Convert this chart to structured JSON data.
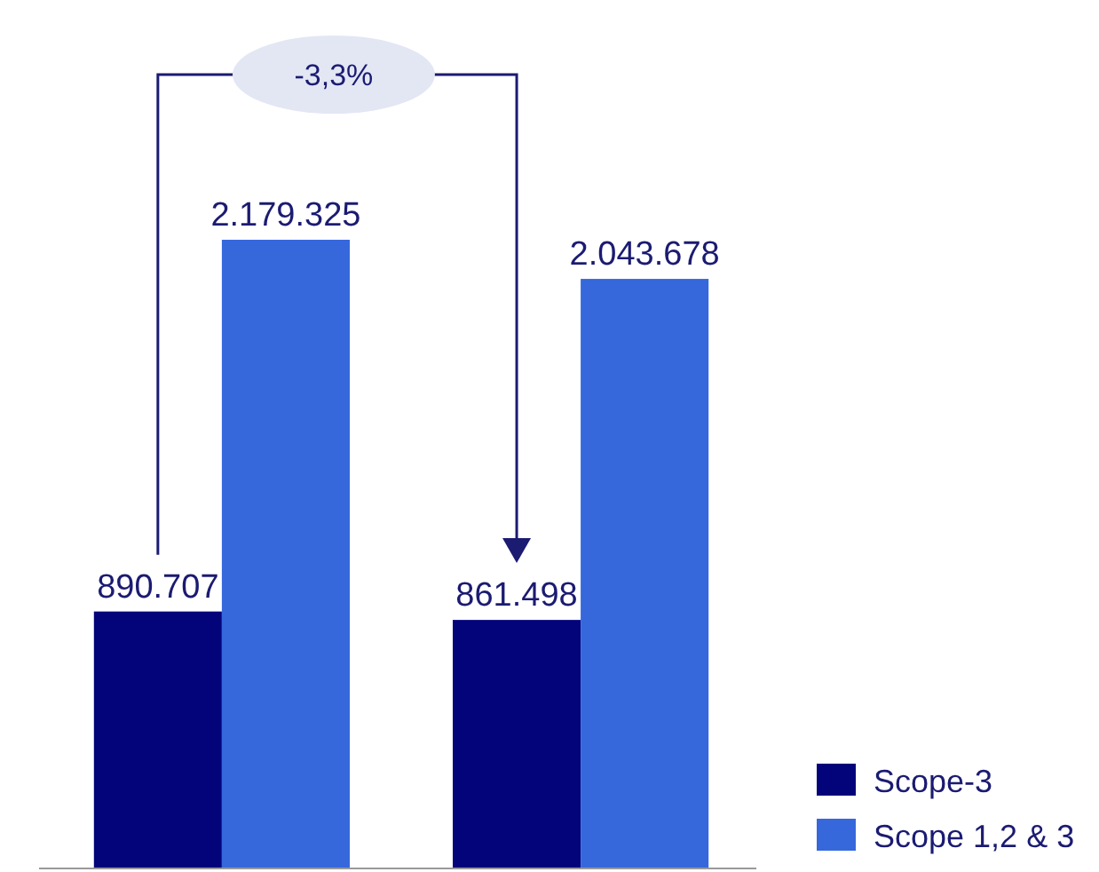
{
  "chart_data": {
    "type": "bar",
    "categories": [
      null,
      null
    ],
    "series": [
      {
        "name": "Scope-3",
        "color": "#03037a",
        "values": [
          890707,
          861498
        ],
        "value_labels": [
          "890.707",
          "861.498"
        ]
      },
      {
        "name": "Scope 1,2 & 3",
        "color": "#3668dc",
        "values": [
          2179325,
          2043678
        ],
        "value_labels": [
          "2.179.325",
          "2.043.678"
        ]
      }
    ],
    "annotations": [
      "-3,3%"
    ],
    "legend": "bottom right"
  }
}
